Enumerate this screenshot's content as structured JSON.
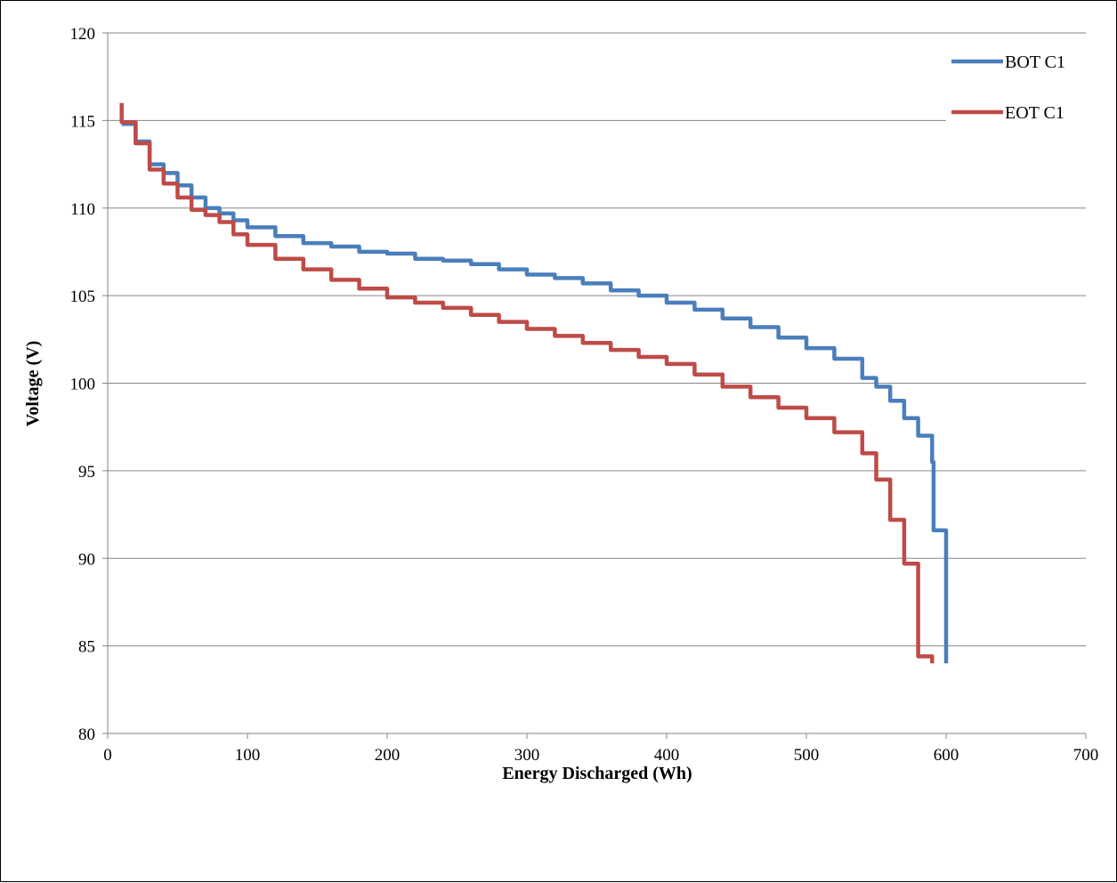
{
  "chart_data": {
    "type": "line",
    "title": "",
    "xlabel": "Energy Discharged (Wh)",
    "ylabel": "Voltage (V)",
    "xlim": [
      0,
      700
    ],
    "ylim": [
      80,
      120
    ],
    "x_ticks": [
      0,
      100,
      200,
      300,
      400,
      500,
      600,
      700
    ],
    "y_ticks": [
      80,
      85,
      90,
      95,
      100,
      105,
      110,
      115,
      120
    ],
    "grid": "horizontal",
    "legend_position": "top-right",
    "series": [
      {
        "name": "BOT C1",
        "color": "#4a7ebb",
        "points": [
          [
            10,
            114.8
          ],
          [
            20,
            113.8
          ],
          [
            30,
            112.5
          ],
          [
            40,
            112.0
          ],
          [
            50,
            111.3
          ],
          [
            60,
            110.6
          ],
          [
            70,
            110.0
          ],
          [
            80,
            109.7
          ],
          [
            90,
            109.3
          ],
          [
            100,
            108.9
          ],
          [
            120,
            108.4
          ],
          [
            140,
            108.0
          ],
          [
            160,
            107.8
          ],
          [
            180,
            107.5
          ],
          [
            200,
            107.4
          ],
          [
            220,
            107.1
          ],
          [
            240,
            107.0
          ],
          [
            260,
            106.8
          ],
          [
            280,
            106.5
          ],
          [
            300,
            106.2
          ],
          [
            320,
            106.0
          ],
          [
            340,
            105.7
          ],
          [
            360,
            105.3
          ],
          [
            380,
            105.0
          ],
          [
            400,
            104.6
          ],
          [
            420,
            104.2
          ],
          [
            440,
            103.7
          ],
          [
            460,
            103.2
          ],
          [
            480,
            102.6
          ],
          [
            500,
            102.0
          ],
          [
            520,
            101.4
          ],
          [
            540,
            100.3
          ],
          [
            550,
            99.8
          ],
          [
            560,
            99.0
          ],
          [
            570,
            98.0
          ],
          [
            580,
            97.0
          ],
          [
            590,
            95.5
          ],
          [
            591,
            91.6
          ],
          [
            600,
            91.5
          ],
          [
            600,
            84.0
          ]
        ]
      },
      {
        "name": "EOT C1",
        "color": "#be4b48",
        "points": [
          [
            10,
            116.0
          ],
          [
            10,
            114.9
          ],
          [
            20,
            113.7
          ],
          [
            30,
            112.2
          ],
          [
            40,
            111.4
          ],
          [
            50,
            110.6
          ],
          [
            60,
            109.9
          ],
          [
            70,
            109.6
          ],
          [
            80,
            109.2
          ],
          [
            90,
            108.5
          ],
          [
            100,
            107.9
          ],
          [
            120,
            107.1
          ],
          [
            140,
            106.5
          ],
          [
            160,
            105.9
          ],
          [
            180,
            105.4
          ],
          [
            200,
            104.9
          ],
          [
            220,
            104.6
          ],
          [
            240,
            104.3
          ],
          [
            260,
            103.9
          ],
          [
            280,
            103.5
          ],
          [
            300,
            103.1
          ],
          [
            320,
            102.7
          ],
          [
            340,
            102.3
          ],
          [
            360,
            101.9
          ],
          [
            380,
            101.5
          ],
          [
            400,
            101.1
          ],
          [
            420,
            100.5
          ],
          [
            440,
            99.8
          ],
          [
            460,
            99.2
          ],
          [
            480,
            98.6
          ],
          [
            500,
            98.0
          ],
          [
            520,
            97.2
          ],
          [
            540,
            96.0
          ],
          [
            550,
            94.5
          ],
          [
            560,
            93.5
          ],
          [
            560,
            92.2
          ],
          [
            570,
            92.2
          ],
          [
            570,
            89.7
          ],
          [
            580,
            89.7
          ],
          [
            580,
            84.4
          ],
          [
            590,
            84.4
          ],
          [
            590,
            84.0
          ]
        ]
      }
    ]
  }
}
